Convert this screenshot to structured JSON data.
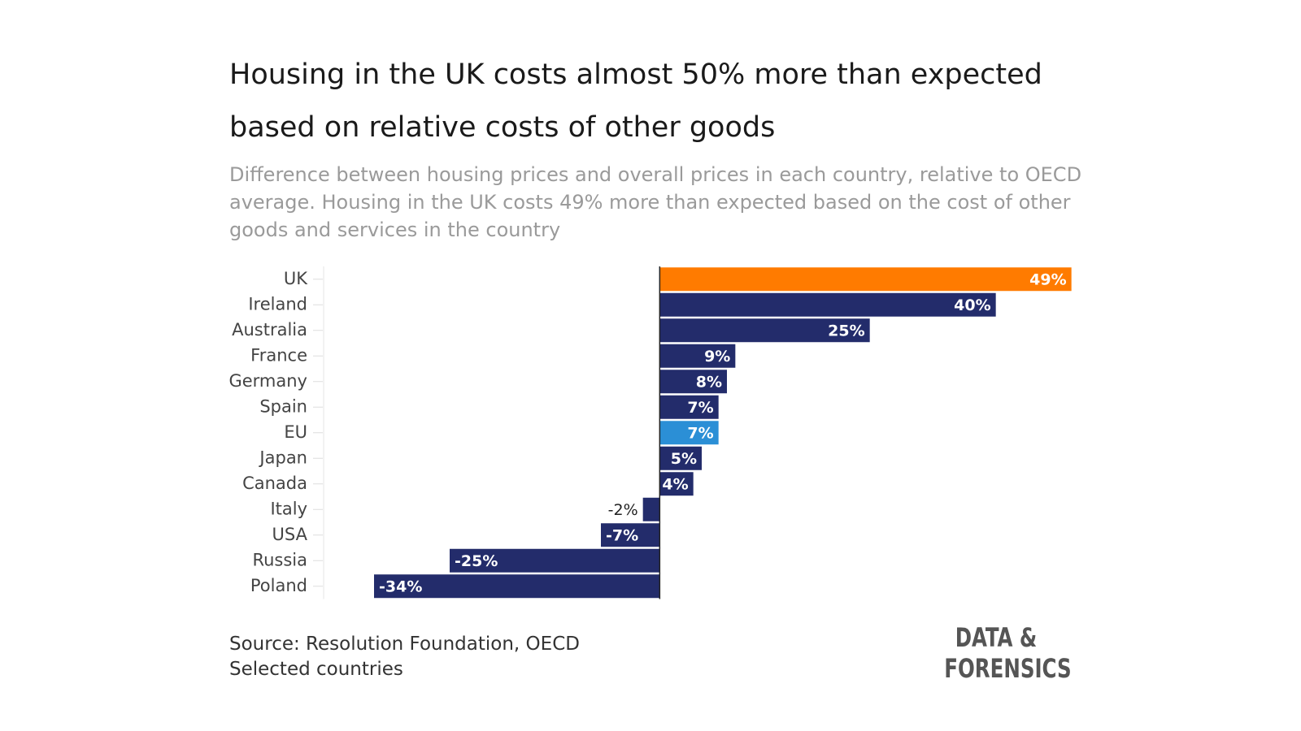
{
  "chart_data": {
    "type": "bar",
    "orientation": "horizontal",
    "title": "Housing in the UK costs almost 50% more than expected based on relative costs of other goods",
    "subtitle": "Difference between housing prices and overall prices in each country, relative to OECD average. Housing in the UK costs 49% more than expected based on the cost of other goods and services in the country",
    "categories": [
      "UK",
      "Ireland",
      "Australia",
      "France",
      "Germany",
      "Spain",
      "EU",
      "Japan",
      "Canada",
      "Italy",
      "USA",
      "Russia",
      "Poland"
    ],
    "values": [
      49,
      40,
      25,
      9,
      8,
      7,
      7,
      5,
      4,
      -2,
      -7,
      -25,
      -34
    ],
    "value_labels": [
      "49%",
      "40%",
      "25%",
      "9%",
      "8%",
      "7%",
      "7%",
      "5%",
      "4%",
      "-2%",
      "-7%",
      "-25%",
      "-34%"
    ],
    "colors": [
      "#ff7b00",
      "#232c6b",
      "#232c6b",
      "#232c6b",
      "#232c6b",
      "#232c6b",
      "#2b8fd6",
      "#232c6b",
      "#232c6b",
      "#232c6b",
      "#232c6b",
      "#232c6b",
      "#232c6b"
    ],
    "xlim": [
      -40,
      50
    ],
    "source": "Source: Resolution Foundation, OECD",
    "note": "Selected countries",
    "logo": [
      "DATA &",
      "FORENSICS"
    ]
  }
}
